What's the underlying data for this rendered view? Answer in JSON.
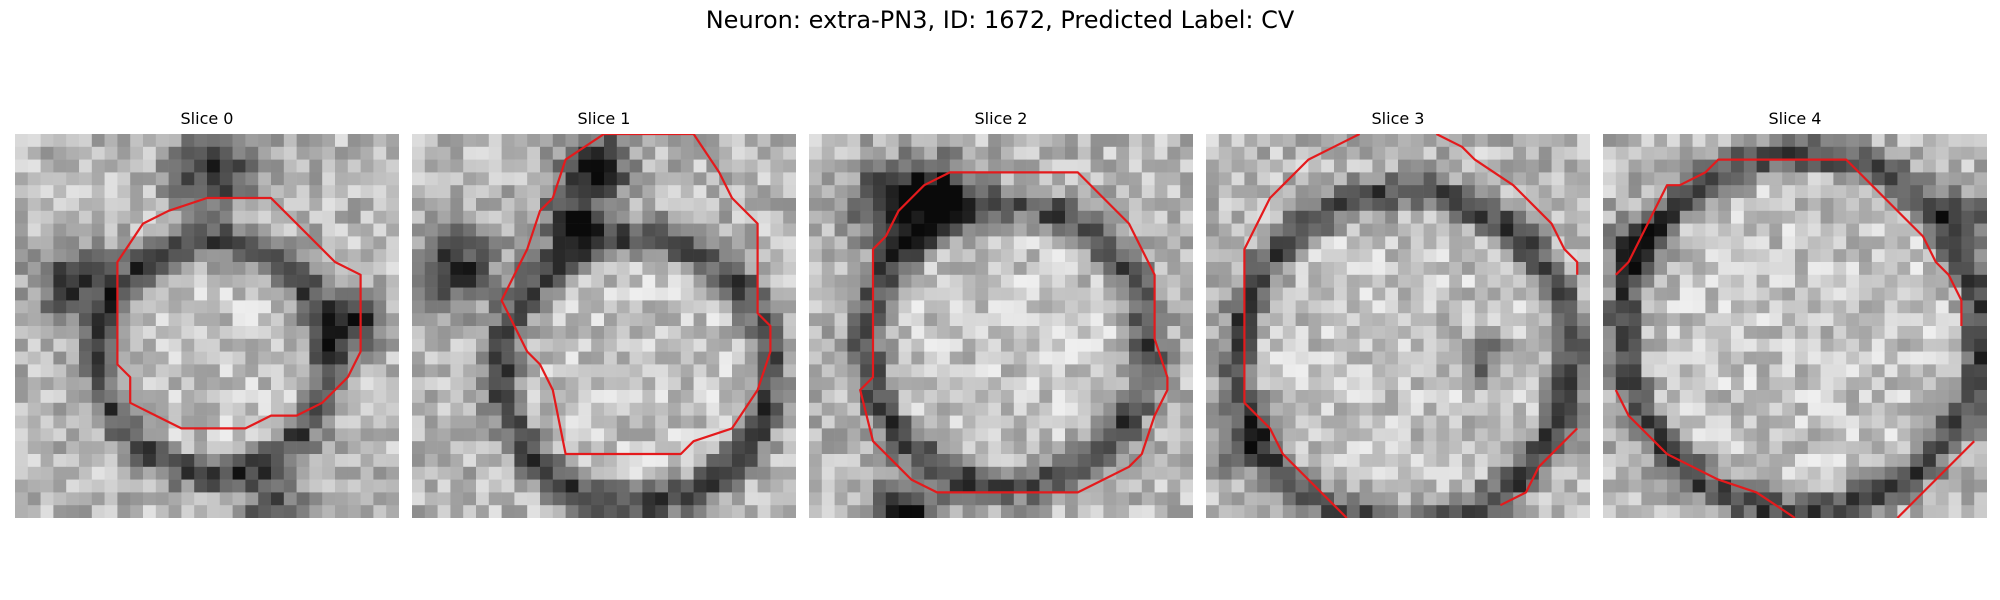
{
  "title": "Neuron: extra-PN3, ID: 1672, Predicted Label: CV",
  "contour_color": "#e41a1c",
  "slices": [
    {
      "label": "Slice 0"
    },
    {
      "label": "Slice 1"
    },
    {
      "label": "Slice 2"
    },
    {
      "label": "Slice 3"
    },
    {
      "label": "Slice 4"
    }
  ]
}
